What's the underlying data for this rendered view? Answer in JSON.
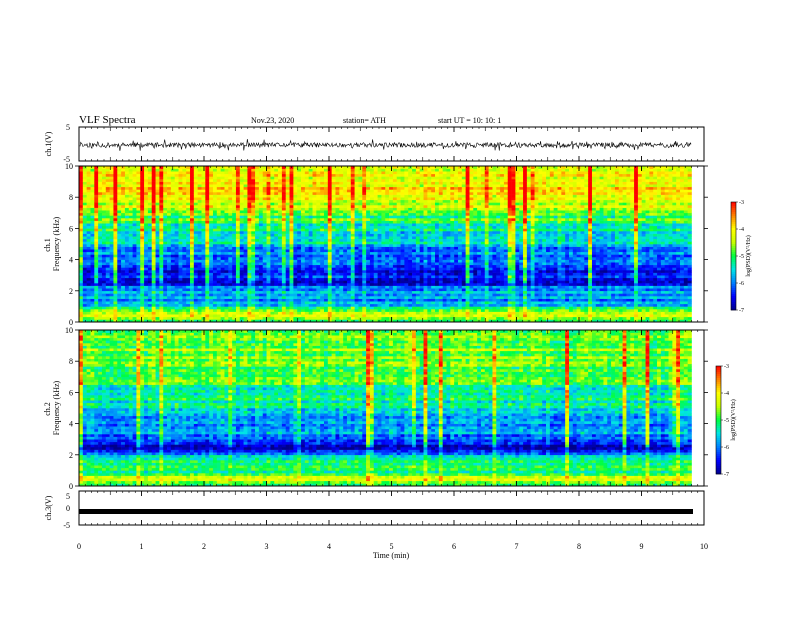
{
  "header": {
    "title": "VLF Spectra",
    "date": "Nov.23, 2020",
    "station": "station= ATH",
    "start": "start  UT =   10: 10: 1"
  },
  "colors": {
    "colormap": [
      "#00008b",
      "#0000ff",
      "#0080ff",
      "#00e5e5",
      "#00ff40",
      "#c8ff00",
      "#ffff00",
      "#ff8000",
      "#ff0000"
    ],
    "trace": "#000000"
  },
  "chart_data": [
    {
      "type": "line",
      "ylabel": "ch.1(V)",
      "ylim": [
        -5,
        5
      ],
      "yticks": [
        "5",
        "-5"
      ],
      "xlim": [
        0,
        10
      ],
      "signal_range": [
        -2.0,
        1.5
      ]
    },
    {
      "type": "heatmap",
      "ylabel": "ch.1\nFrequency  (kHz)",
      "ylabel_line1": "ch.1",
      "ylabel_line2": "Frequency  (kHz)",
      "ylim": [
        0,
        10
      ],
      "yticks": [
        "0",
        "2",
        "4",
        "6",
        "8",
        "10"
      ],
      "data_xmax": 9.8,
      "colorbar": {
        "label": "log(PSD)(V²/Hz)",
        "ticks": [
          "-3",
          "-4",
          "-5",
          "-6",
          "-7"
        ],
        "range": [
          -7,
          -3
        ]
      },
      "band_profile": [
        [
          0,
          -5.0
        ],
        [
          0.5,
          -4.2
        ],
        [
          1.0,
          -5.6
        ],
        [
          1.5,
          -6.0
        ],
        [
          2.0,
          -5.6
        ],
        [
          2.5,
          -6.6
        ],
        [
          3.0,
          -6.3
        ],
        [
          4.0,
          -6.3
        ],
        [
          4.5,
          -6.0
        ],
        [
          5.0,
          -5.6
        ],
        [
          6.0,
          -5.3
        ],
        [
          7.0,
          -4.8
        ],
        [
          8.0,
          -4.0
        ],
        [
          9.0,
          -4.0
        ],
        [
          10.0,
          -4.1
        ]
      ]
    },
    {
      "type": "heatmap",
      "ylabel": "ch.2\nFrequency  (kHz)",
      "ylabel_line1": "ch.2",
      "ylabel_line2": "Frequency  (kHz)",
      "ylim": [
        0,
        10
      ],
      "yticks": [
        "0",
        "2",
        "4",
        "6",
        "8",
        "10"
      ],
      "data_xmax": 9.8,
      "colorbar": {
        "label": "log(PSD)(V²/Hz)",
        "ticks": [
          "-3",
          "-4",
          "-5",
          "-6",
          "-7"
        ],
        "range": [
          -7,
          -3
        ]
      },
      "band_profile": [
        [
          0,
          -5.0
        ],
        [
          0.5,
          -4.4
        ],
        [
          1.0,
          -5.3
        ],
        [
          1.5,
          -5.2
        ],
        [
          2.0,
          -5.8
        ],
        [
          2.5,
          -6.6
        ],
        [
          3.0,
          -6.0
        ],
        [
          4.0,
          -5.9
        ],
        [
          5.0,
          -5.5
        ],
        [
          6.0,
          -5.2
        ],
        [
          7.0,
          -5.0
        ],
        [
          8.0,
          -4.7
        ],
        [
          9.0,
          -4.6
        ],
        [
          10.0,
          -4.8
        ]
      ]
    },
    {
      "type": "line",
      "ylabel": "ch.3(V)",
      "ylim": [
        -5,
        5
      ],
      "yticks": [
        "5",
        "0",
        "-5"
      ],
      "xlim": [
        0,
        10
      ],
      "signal_range": [
        -0.5,
        0.5
      ],
      "xlabel": "Time  (min)",
      "xticks": [
        "0",
        "1",
        "2",
        "3",
        "4",
        "5",
        "6",
        "7",
        "8",
        "9",
        "10"
      ]
    }
  ]
}
